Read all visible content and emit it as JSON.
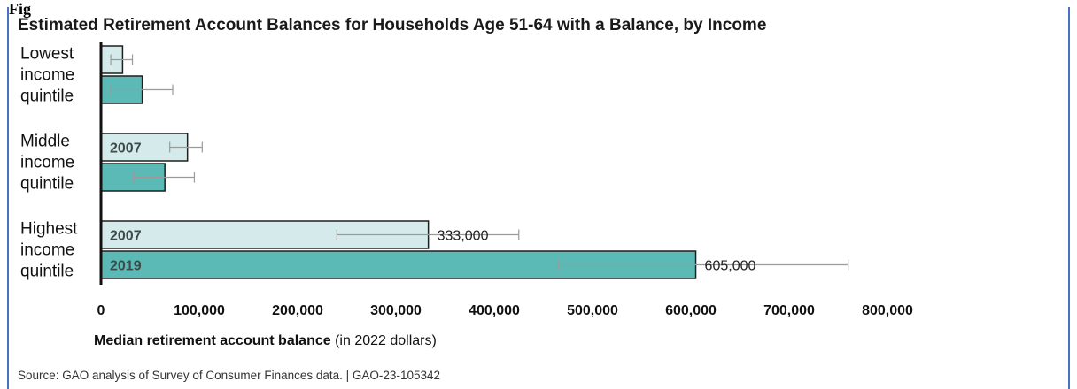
{
  "page": {
    "figure_label": "Fig",
    "source": "Source: GAO analysis of Survey of Consumer Finances data.  |  GAO-23-105342"
  },
  "colors": {
    "series_2007": "#d5ebeb",
    "series_2019": "#5bbab5",
    "bar_stroke": "#1e1e1e",
    "axis": "#111111",
    "error_bar": "#9a9a9a",
    "frame": "#4a72c4"
  },
  "chart_data": {
    "type": "bar",
    "orientation": "horizontal",
    "title": "Estimated Retirement Account Balances for Households Age 51-64 with a Balance, by Income",
    "xlabel_bold": "Median retirement account balance",
    "xlabel_normal": " (in 2022 dollars)",
    "xlim": [
      0,
      800000
    ],
    "xticks": [
      0,
      100000,
      200000,
      300000,
      400000,
      500000,
      600000,
      700000,
      800000
    ],
    "xtick_labels": [
      "0",
      "100,000",
      "200,000",
      "300,000",
      "400,000",
      "500,000",
      "600,000",
      "700,000",
      "800,000"
    ],
    "grid": false,
    "categories": [
      [
        "Lowest",
        "income",
        "quintile"
      ],
      [
        "Middle",
        "income",
        "quintile"
      ],
      [
        "Highest",
        "income",
        "quintile"
      ]
    ],
    "series": [
      {
        "name": "2007",
        "values": [
          22000,
          88000,
          333000
        ],
        "error_low": [
          10000,
          70000,
          240000
        ],
        "error_high": [
          32000,
          103000,
          425000
        ],
        "bar_labels": [
          "",
          "2007",
          "2007"
        ],
        "value_labels": [
          "",
          "",
          "333,000"
        ]
      },
      {
        "name": "2019",
        "values": [
          42000,
          65000,
          605000
        ],
        "error_low": [
          10000,
          33000,
          465000
        ],
        "error_high": [
          73000,
          95000,
          760000
        ],
        "bar_labels": [
          "",
          "",
          "2019"
        ],
        "value_labels": [
          "",
          "",
          "605,000"
        ]
      }
    ]
  }
}
